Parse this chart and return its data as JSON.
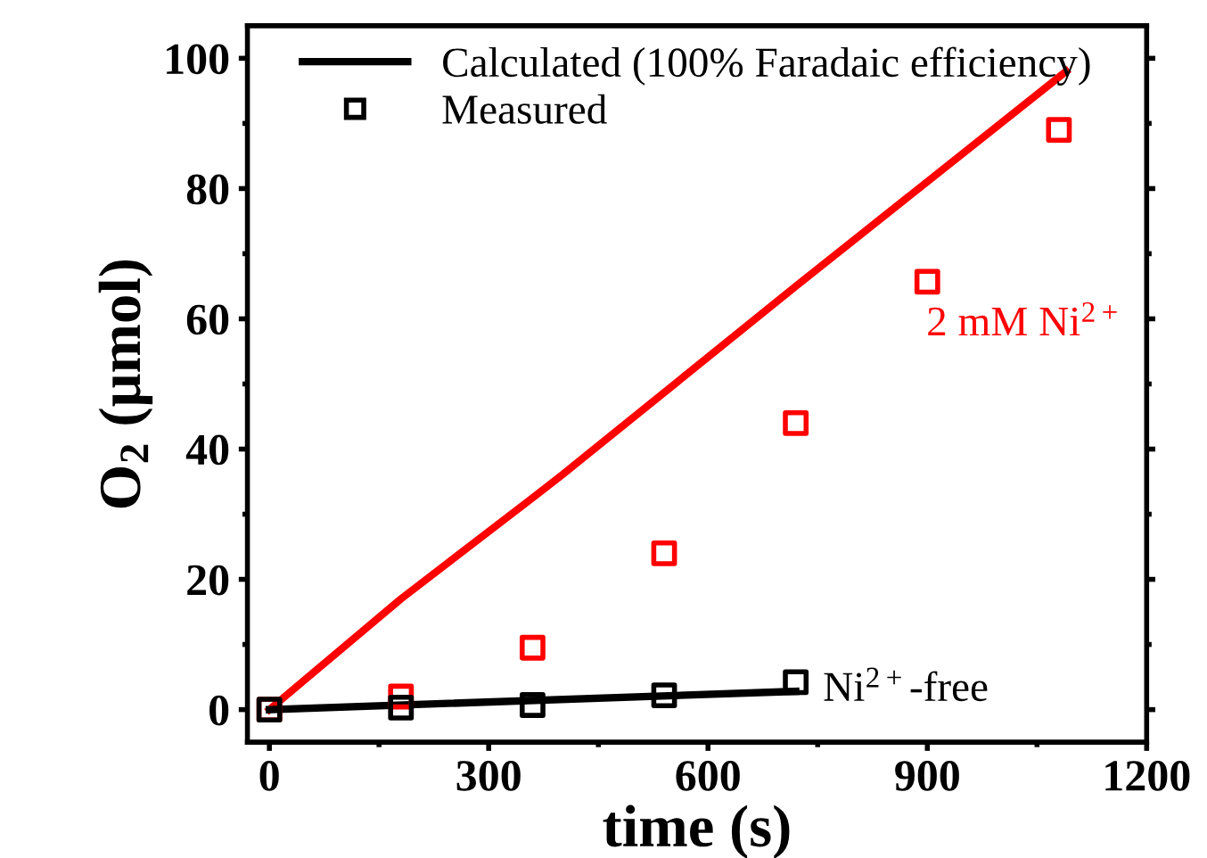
{
  "chart_data": {
    "type": "line",
    "xlabel": "time (s)",
    "ylabel": "O$_{2}$ (μmol)",
    "series": [
      {
        "color": "#ff0000",
        "x": [
          0,
          180,
          360,
          400,
          720,
          1090
        ],
        "values": [
          0,
          17,
          32.5,
          36,
          65,
          98
        ]
      },
      {
        "name": "Calculated (100% Faradaic efficiency)",
        "color": "#000000",
        "x": [
          0,
          720
        ],
        "values": [
          0,
          2.8
        ]
      },
      {
        "type": "scatter",
        "marker": "square",
        "color": "#ff0000",
        "x": [
          0,
          180,
          360,
          540,
          720,
          900,
          1080
        ],
        "values": [
          0,
          2,
          9.5,
          24,
          44,
          65.7,
          89
        ]
      },
      {
        "name": "Measured",
        "type": "scatter",
        "marker": "square",
        "color": "#000000",
        "x": [
          0,
          180,
          360,
          540,
          720
        ],
        "values": [
          0,
          0.3,
          0.7,
          2.2,
          4.2
        ]
      }
    ],
    "annotations": [
      "2 mM Ni$^{2+}$",
      "Ni$^{2+}$-free"
    ],
    "xlim": [
      -30,
      1200
    ],
    "xticks": [
      0,
      300,
      600,
      900,
      1200
    ],
    "ylim": [
      -5,
      105
    ],
    "yticks": [
      0,
      20,
      40,
      60,
      80,
      100
    ],
    "legend": "top"
  }
}
